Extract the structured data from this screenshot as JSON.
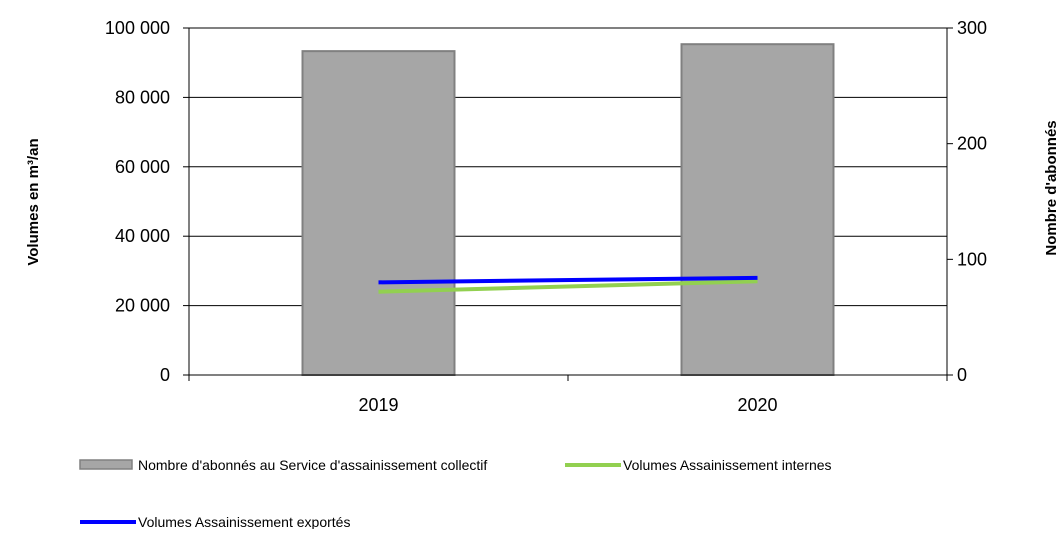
{
  "chart_data": {
    "type": "bar",
    "categories": [
      "2019",
      "2020"
    ],
    "left_axis": {
      "label": "Volumes en m³/an",
      "ylim": [
        0,
        100000
      ],
      "ticks": [
        "0",
        "20 000",
        "40 000",
        "60 000",
        "80 000",
        "100 000"
      ],
      "tick_values": [
        0,
        20000,
        40000,
        60000,
        80000,
        100000
      ]
    },
    "right_axis": {
      "label": "Nombre d'abonnés",
      "ylim": [
        0,
        300
      ],
      "ticks": [
        "0",
        "100",
        "200",
        "300"
      ],
      "tick_values": [
        0,
        100,
        200,
        300
      ]
    },
    "series": [
      {
        "name": "Nombre d'abonnés au Service d'assainissement collectif",
        "kind": "bar",
        "axis": "right",
        "color": "#a6a6a6",
        "values": [
          280,
          286
        ]
      },
      {
        "name": "Volumes Assainissement internes",
        "kind": "line",
        "axis": "left",
        "color": "#92d050",
        "values": [
          24000,
          27000
        ]
      },
      {
        "name": "Volumes Assainissement exportés",
        "kind": "line",
        "axis": "left",
        "color": "#0000ff",
        "values": [
          26700,
          28000
        ]
      }
    ],
    "grid": true,
    "legend": "bottom"
  }
}
